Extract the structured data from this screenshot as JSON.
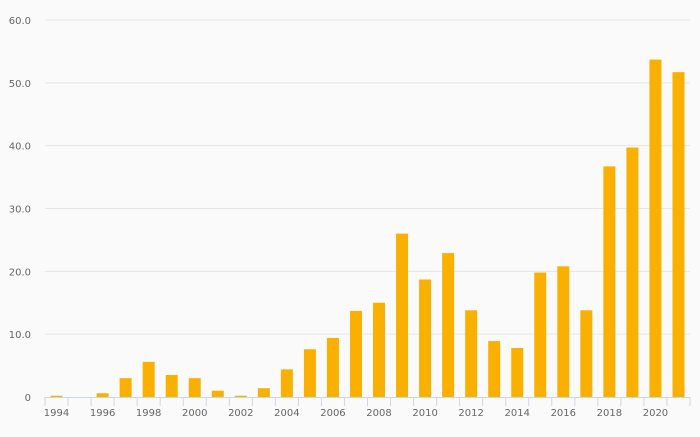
{
  "chart_data": {
    "type": "bar",
    "title": "",
    "xlabel": "",
    "ylabel": "",
    "categories": [
      "1994",
      "1995",
      "1996",
      "1997",
      "1998",
      "1999",
      "2000",
      "2001",
      "2002",
      "2003",
      "2004",
      "2005",
      "2006",
      "2007",
      "2008",
      "2009",
      "2010",
      "2011",
      "2012",
      "2013",
      "2014",
      "2015",
      "2016",
      "2017",
      "2018",
      "2019",
      "2020",
      "2021"
    ],
    "x_tick_labels": [
      "1994",
      "1996",
      "1998",
      "2000",
      "2002",
      "2004",
      "2006",
      "2008",
      "2010",
      "2012",
      "2014",
      "2016",
      "2018",
      "2020"
    ],
    "values": [
      0.2,
      0,
      0.6,
      3.0,
      5.6,
      3.5,
      3.0,
      1.0,
      0.2,
      1.4,
      4.4,
      7.6,
      9.4,
      13.7,
      15.0,
      26.0,
      18.7,
      22.9,
      13.8,
      8.9,
      7.8,
      19.8,
      20.8,
      13.8,
      36.7,
      39.7,
      53.7,
      51.7
    ],
    "ylim": [
      0,
      60
    ],
    "y_tick_labels": [
      "0",
      "10.0",
      "20.0",
      "30.0",
      "40.0",
      "50.0",
      "60.0"
    ],
    "y_ticks": [
      0,
      10,
      20,
      30,
      40,
      50,
      60
    ],
    "grid": true,
    "bar_color": "#f9b000"
  }
}
